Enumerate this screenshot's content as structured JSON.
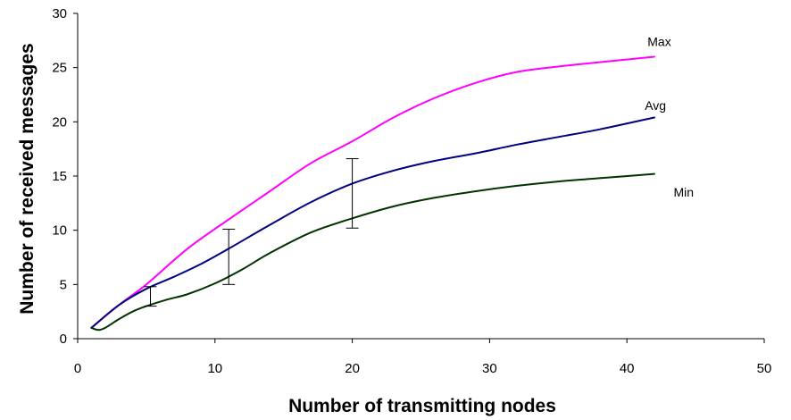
{
  "chart_data": {
    "type": "line",
    "title": "",
    "xlabel": "Number of transmitting nodes",
    "ylabel": "Number of received messages",
    "xlim": [
      0,
      50
    ],
    "ylim": [
      0,
      30
    ],
    "x_ticks": [
      0,
      10,
      20,
      30,
      40,
      50
    ],
    "y_ticks": [
      0,
      5,
      10,
      15,
      20,
      25,
      30
    ],
    "grid": false,
    "legend": "none",
    "series": [
      {
        "name": "Max",
        "color": "#ff00ff",
        "points": [
          [
            1,
            1
          ],
          [
            3,
            3.1
          ],
          [
            5,
            5
          ],
          [
            8,
            8.3
          ],
          [
            11,
            11
          ],
          [
            14,
            13.6
          ],
          [
            17,
            16.2
          ],
          [
            20,
            18.2
          ],
          [
            23,
            20.4
          ],
          [
            26,
            22.2
          ],
          [
            29,
            23.6
          ],
          [
            32,
            24.6
          ],
          [
            35,
            25.1
          ],
          [
            38,
            25.5
          ],
          [
            42,
            26
          ]
        ]
      },
      {
        "name": "Avg",
        "color": "#000080",
        "points": [
          [
            1,
            1
          ],
          [
            3,
            3.1
          ],
          [
            5,
            4.6
          ],
          [
            7,
            5.7
          ],
          [
            9,
            6.9
          ],
          [
            11,
            8.3
          ],
          [
            14,
            10.5
          ],
          [
            17,
            12.6
          ],
          [
            20,
            14.3
          ],
          [
            23,
            15.5
          ],
          [
            26,
            16.4
          ],
          [
            29,
            17.1
          ],
          [
            32,
            17.9
          ],
          [
            35,
            18.6
          ],
          [
            38,
            19.3
          ],
          [
            42,
            20.4
          ]
        ]
      },
      {
        "name": "Min",
        "color": "#003300",
        "points": [
          [
            1,
            1
          ],
          [
            1.5,
            0.8
          ],
          [
            2,
            1
          ],
          [
            3,
            1.8
          ],
          [
            4,
            2.5
          ],
          [
            5,
            3
          ],
          [
            6.5,
            3.6
          ],
          [
            8,
            4.1
          ],
          [
            10,
            5.1
          ],
          [
            12,
            6.4
          ],
          [
            14,
            7.9
          ],
          [
            17,
            9.8
          ],
          [
            20,
            11.1
          ],
          [
            23,
            12.2
          ],
          [
            26,
            13
          ],
          [
            29,
            13.6
          ],
          [
            32,
            14.1
          ],
          [
            35,
            14.5
          ],
          [
            38,
            14.8
          ],
          [
            42,
            15.2
          ]
        ]
      }
    ],
    "error_bars": [
      {
        "x": 5.3,
        "low": 3,
        "high": 4.8
      },
      {
        "x": 11,
        "low": 5,
        "high": 10.1
      },
      {
        "x": 20,
        "low": 10.2,
        "high": 16.6
      }
    ],
    "annotations": [
      {
        "text": "Max",
        "x": 41.5,
        "y": 27
      },
      {
        "text": "Avg",
        "x": 41.3,
        "y": 21.1
      },
      {
        "text": "Min",
        "x": 43.4,
        "y": 13.1
      }
    ]
  }
}
